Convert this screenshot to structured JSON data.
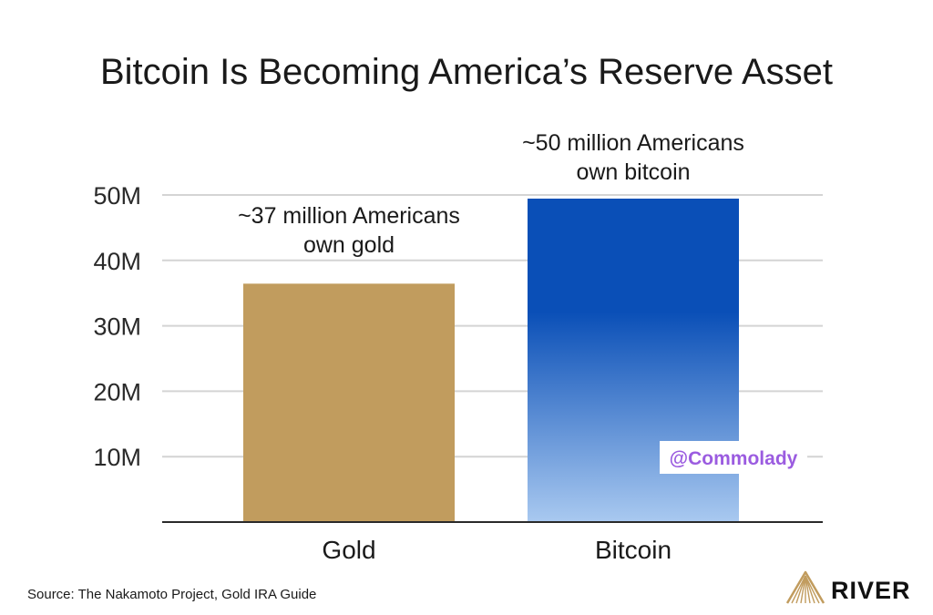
{
  "chart_data": {
    "type": "bar",
    "title": "Bitcoin Is Becoming America’s Reserve Asset",
    "categories": [
      "Gold",
      "Bitcoin"
    ],
    "values": [
      37,
      50
    ],
    "series": [
      {
        "values": [
          37,
          50
        ]
      }
    ],
    "annotations": [
      {
        "lines": [
          "~37 million Americans",
          "own gold"
        ]
      },
      {
        "lines": [
          "~50 million Americans",
          "own bitcoin"
        ]
      }
    ],
    "ylim": [
      0,
      50
    ],
    "yticks": [
      10,
      20,
      30,
      40,
      50
    ],
    "ytick_labels": [
      "10M",
      "20M",
      "30M",
      "40M",
      "50M"
    ],
    "grid": true,
    "xlabel": "",
    "ylabel": "",
    "colors": {
      "gold": "#C19C5E",
      "bitcoin_top": "#0A4FB7",
      "bitcoin_bottom": "#A9C9F0",
      "grid": "#d4d4d4",
      "axis": "#2a2a2a"
    }
  },
  "source": "Source: The Nakamoto Project, Gold IRA Guide",
  "brand": {
    "name": "RIVER",
    "logo_icon": "mountain-stripes-icon",
    "logo_color": "#C19C5E"
  },
  "watermark": {
    "text": "@Commolady",
    "color": "#9B5CE0"
  }
}
